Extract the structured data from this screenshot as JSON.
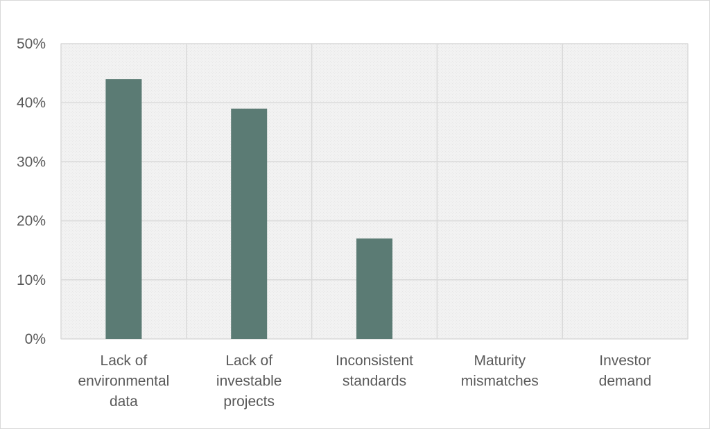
{
  "chart_data": {
    "type": "bar",
    "title": "",
    "xlabel": "",
    "ylabel": "",
    "categories": [
      [
        "Lack of",
        "environmental",
        "data"
      ],
      [
        "Lack of",
        "investable",
        "projects"
      ],
      [
        "Inconsistent",
        "standards"
      ],
      [
        "Maturity",
        "mismatches"
      ],
      [
        "Investor",
        "demand"
      ]
    ],
    "values": [
      44,
      39,
      17,
      0,
      0
    ],
    "ylim": [
      0,
      50
    ],
    "yticks": [
      0,
      10,
      20,
      30,
      40,
      50
    ],
    "ytick_labels": [
      "0%",
      "10%",
      "20%",
      "30%",
      "40%",
      "50%"
    ],
    "grid": true,
    "legend": "none",
    "colors": {
      "bar": "#5b7b74",
      "plot_background": "#f2f2f2",
      "grid": "#d9d9d9",
      "text": "#595959"
    }
  }
}
